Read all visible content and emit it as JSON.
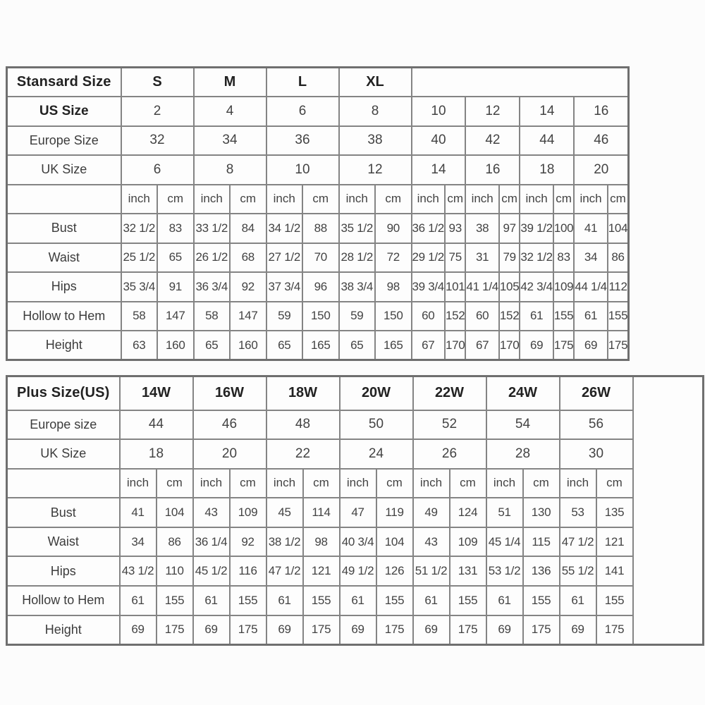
{
  "colors": {
    "background": "#fcfcfc",
    "grid_border": "#848484",
    "outer_border": "#6f6f6f",
    "text": "#434343",
    "bold_text": "#222222"
  },
  "tables": [
    {
      "name": "standard-size-table",
      "corner_label": "Stansard Size",
      "groups": [
        "S",
        "M",
        "L",
        "XL"
      ],
      "size_rows": [
        {
          "label": "US Size",
          "bold": true,
          "values": [
            "2",
            "4",
            "6",
            "8",
            "10",
            "12",
            "14",
            "16"
          ]
        },
        {
          "label": "Europe Size",
          "bold": false,
          "values": [
            "32",
            "34",
            "36",
            "38",
            "40",
            "42",
            "44",
            "46"
          ]
        },
        {
          "label": "UK Size",
          "bold": false,
          "values": [
            "6",
            "8",
            "10",
            "12",
            "14",
            "16",
            "18",
            "20"
          ]
        }
      ],
      "unit_row": [
        "inch",
        "cm",
        "inch",
        "cm",
        "inch",
        "cm",
        "inch",
        "cm",
        "inch",
        "cm",
        "inch",
        "cm",
        "inch",
        "cm",
        "inch",
        "cm"
      ],
      "measurement_rows": [
        {
          "label": "Bust",
          "values": [
            "32 1/2",
            "83",
            "33 1/2",
            "84",
            "34 1/2",
            "88",
            "35 1/2",
            "90",
            "36 1/2",
            "93",
            "38",
            "97",
            "39 1/2",
            "100",
            "41",
            "104"
          ]
        },
        {
          "label": "Waist",
          "values": [
            "25 1/2",
            "65",
            "26 1/2",
            "68",
            "27 1/2",
            "70",
            "28 1/2",
            "72",
            "29 1/2",
            "75",
            "31",
            "79",
            "32 1/2",
            "83",
            "34",
            "86"
          ]
        },
        {
          "label": "Hips",
          "values": [
            "35 3/4",
            "91",
            "36 3/4",
            "92",
            "37 3/4",
            "96",
            "38 3/4",
            "98",
            "39 3/4",
            "101",
            "41 1/4",
            "105",
            "42 3/4",
            "109",
            "44 1/4",
            "112"
          ]
        },
        {
          "label": "Hollow to Hem",
          "values": [
            "58",
            "147",
            "58",
            "147",
            "59",
            "150",
            "59",
            "150",
            "60",
            "152",
            "60",
            "152",
            "61",
            "155",
            "61",
            "155"
          ]
        },
        {
          "label": "Height",
          "values": [
            "63",
            "160",
            "65",
            "160",
            "65",
            "165",
            "65",
            "165",
            "67",
            "170",
            "67",
            "170",
            "69",
            "175",
            "69",
            "175"
          ]
        }
      ],
      "has_trailing_empty_column": false
    },
    {
      "name": "plus-size-table",
      "corner_label": "Plus Size(US)",
      "groups": [
        "14W",
        "16W",
        "18W",
        "20W",
        "22W",
        "24W",
        "26W"
      ],
      "size_rows": [
        {
          "label": "Europe size",
          "bold": false,
          "values": [
            "44",
            "46",
            "48",
            "50",
            "52",
            "54",
            "56"
          ]
        },
        {
          "label": "UK Size",
          "bold": false,
          "values": [
            "18",
            "20",
            "22",
            "24",
            "26",
            "28",
            "30"
          ]
        }
      ],
      "unit_row": [
        "inch",
        "cm",
        "inch",
        "cm",
        "inch",
        "cm",
        "inch",
        "cm",
        "inch",
        "cm",
        "inch",
        "cm",
        "inch",
        "cm"
      ],
      "measurement_rows": [
        {
          "label": "Bust",
          "values": [
            "41",
            "104",
            "43",
            "109",
            "45",
            "114",
            "47",
            "119",
            "49",
            "124",
            "51",
            "130",
            "53",
            "135"
          ]
        },
        {
          "label": "Waist",
          "values": [
            "34",
            "86",
            "36 1/4",
            "92",
            "38 1/2",
            "98",
            "40 3/4",
            "104",
            "43",
            "109",
            "45 1/4",
            "115",
            "47 1/2",
            "121"
          ]
        },
        {
          "label": "Hips",
          "values": [
            "43 1/2",
            "110",
            "45 1/2",
            "116",
            "47 1/2",
            "121",
            "49 1/2",
            "126",
            "51 1/2",
            "131",
            "53 1/2",
            "136",
            "55 1/2",
            "141"
          ]
        },
        {
          "label": "Hollow to Hem",
          "values": [
            "61",
            "155",
            "61",
            "155",
            "61",
            "155",
            "61",
            "155",
            "61",
            "155",
            "61",
            "155",
            "61",
            "155"
          ]
        },
        {
          "label": "Height",
          "values": [
            "69",
            "175",
            "69",
            "175",
            "69",
            "175",
            "69",
            "175",
            "69",
            "175",
            "69",
            "175",
            "69",
            "175"
          ]
        }
      ],
      "has_trailing_empty_column": true
    }
  ]
}
